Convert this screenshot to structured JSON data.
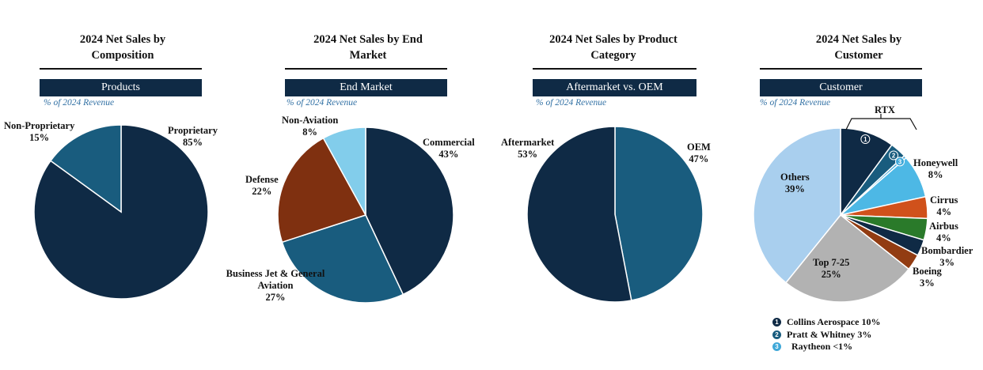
{
  "subtitle": "% of 2024 Revenue",
  "chart_data": [
    {
      "type": "pie",
      "title": "2024 Net Sales by Composition",
      "banner": "Products",
      "slices": [
        {
          "label": "Proprietary",
          "pct_text": "85%",
          "value": 85,
          "color": "#0f2a45"
        },
        {
          "label": "Non-Proprietary",
          "pct_text": "15%",
          "value": 15,
          "color": "#195c7e"
        }
      ]
    },
    {
      "type": "pie",
      "title": "2024 Net Sales by End Market",
      "banner": "End Market",
      "slices": [
        {
          "label": "Commercial",
          "pct_text": "43%",
          "value": 43,
          "color": "#0f2a45"
        },
        {
          "label": "Business Jet & General Aviation",
          "pct_text": "27%",
          "value": 27,
          "color": "#195c7e"
        },
        {
          "label": "Defense",
          "pct_text": "22%",
          "value": 22,
          "color": "#7f3010"
        },
        {
          "label": "Non-Aviation",
          "pct_text": "8%",
          "value": 8,
          "color": "#82cdeb"
        }
      ]
    },
    {
      "type": "pie",
      "title": "2024 Net Sales by Product Category",
      "banner": "Aftermarket vs. OEM",
      "slices": [
        {
          "label": "OEM",
          "pct_text": "47%",
          "value": 47,
          "color": "#195c7e"
        },
        {
          "label": "Aftermarket",
          "pct_text": "53%",
          "value": 53,
          "color": "#0f2a45"
        }
      ]
    },
    {
      "type": "pie",
      "title": "2024 Net Sales by Customer",
      "banner": "Customer",
      "slices": [
        {
          "label": "Collins Aerospace",
          "pct_text": "10%",
          "value": 10,
          "color": "#0f2a45"
        },
        {
          "label": "Pratt & Whitney",
          "pct_text": "3%",
          "value": 3,
          "color": "#195c7e"
        },
        {
          "label": "Raytheon",
          "pct_text": "<1%",
          "value": 0.5,
          "color": "#3fa8d8"
        },
        {
          "label": "Honeywell",
          "pct_text": "8%",
          "value": 8,
          "color": "#4db8e5"
        },
        {
          "label": "Cirrus",
          "pct_text": "4%",
          "value": 4,
          "color": "#d0511b"
        },
        {
          "label": "Airbus",
          "pct_text": "4%",
          "value": 4,
          "color": "#2a7a2a"
        },
        {
          "label": "Bombardier",
          "pct_text": "3%",
          "value": 3,
          "color": "#0f2a45"
        },
        {
          "label": "Boeing",
          "pct_text": "3%",
          "value": 3,
          "color": "#923c12"
        },
        {
          "label": "Top 7-25",
          "pct_text": "25%",
          "value": 25,
          "color": "#b2b2b2"
        },
        {
          "label": "Others",
          "pct_text": "39%",
          "value": 39,
          "color": "#a9cfee"
        }
      ],
      "group_label": "RTX",
      "legend": [
        {
          "num": "1",
          "text": "Collins Aerospace 10%",
          "color": "#0f2a45"
        },
        {
          "num": "2",
          "text": "Pratt & Whitney 3%",
          "color": "#195c7e"
        },
        {
          "num": "3",
          "text": "Raytheon <1%",
          "color": "#3fa8d8"
        }
      ]
    }
  ]
}
